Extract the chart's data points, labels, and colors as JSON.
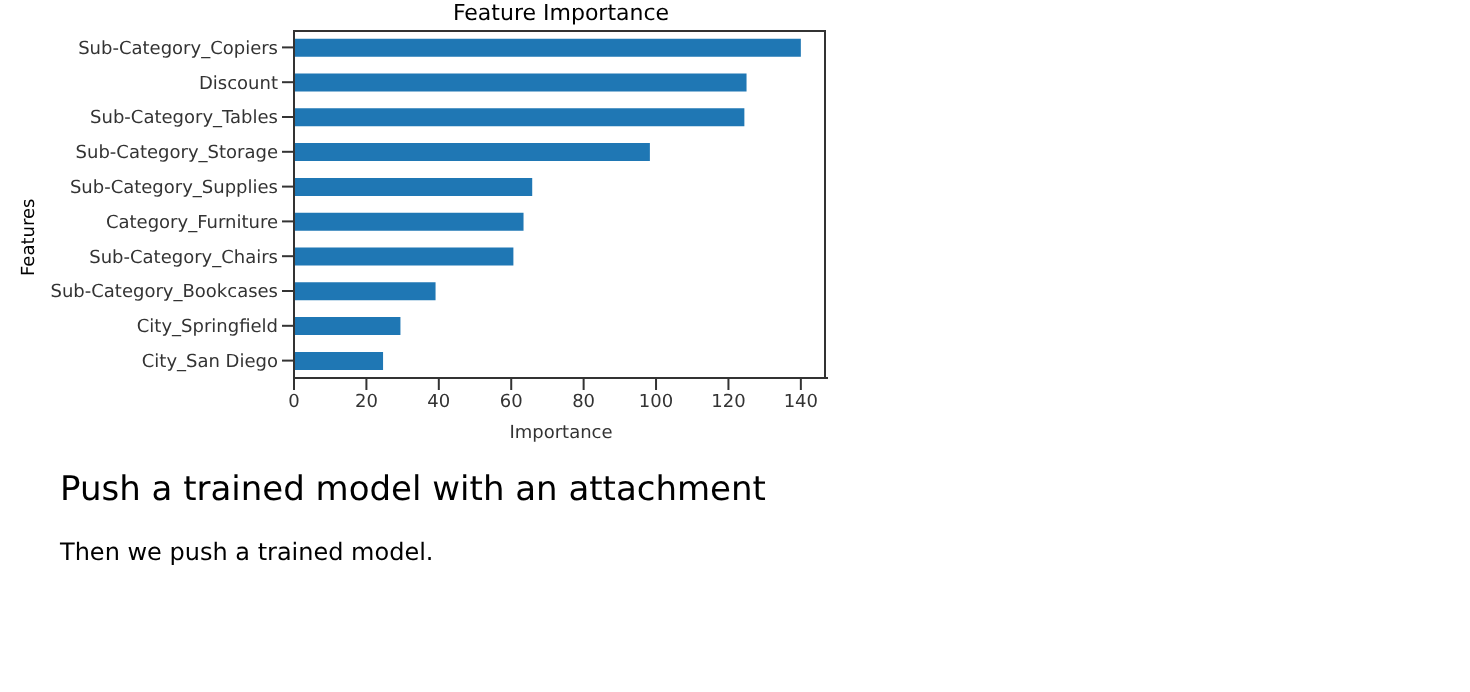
{
  "chart_data": {
    "type": "bar",
    "orientation": "horizontal",
    "title": "Feature Importance",
    "xlabel": "Importance",
    "ylabel": "Features",
    "categories": [
      "Sub-Category_Copiers",
      "Discount",
      "Sub-Category_Tables",
      "Sub-Category_Storage",
      "Sub-Category_Supplies",
      "Category_Furniture",
      "Sub-Category_Chairs",
      "Sub-Category_Bookcases",
      "City_Springfield",
      "City_San Diego"
    ],
    "values": [
      140,
      125,
      124.4,
      98.3,
      65.8,
      63.4,
      60.6,
      39.1,
      29.4,
      24.6
    ],
    "color": "#1f77b4",
    "xlim": [
      0,
      147.5
    ],
    "xticks": [
      0,
      20,
      40,
      60,
      80,
      100,
      120,
      140
    ],
    "annotations": [
      "Push a trained model with an attachment",
      "Then we push a trained model."
    ]
  }
}
